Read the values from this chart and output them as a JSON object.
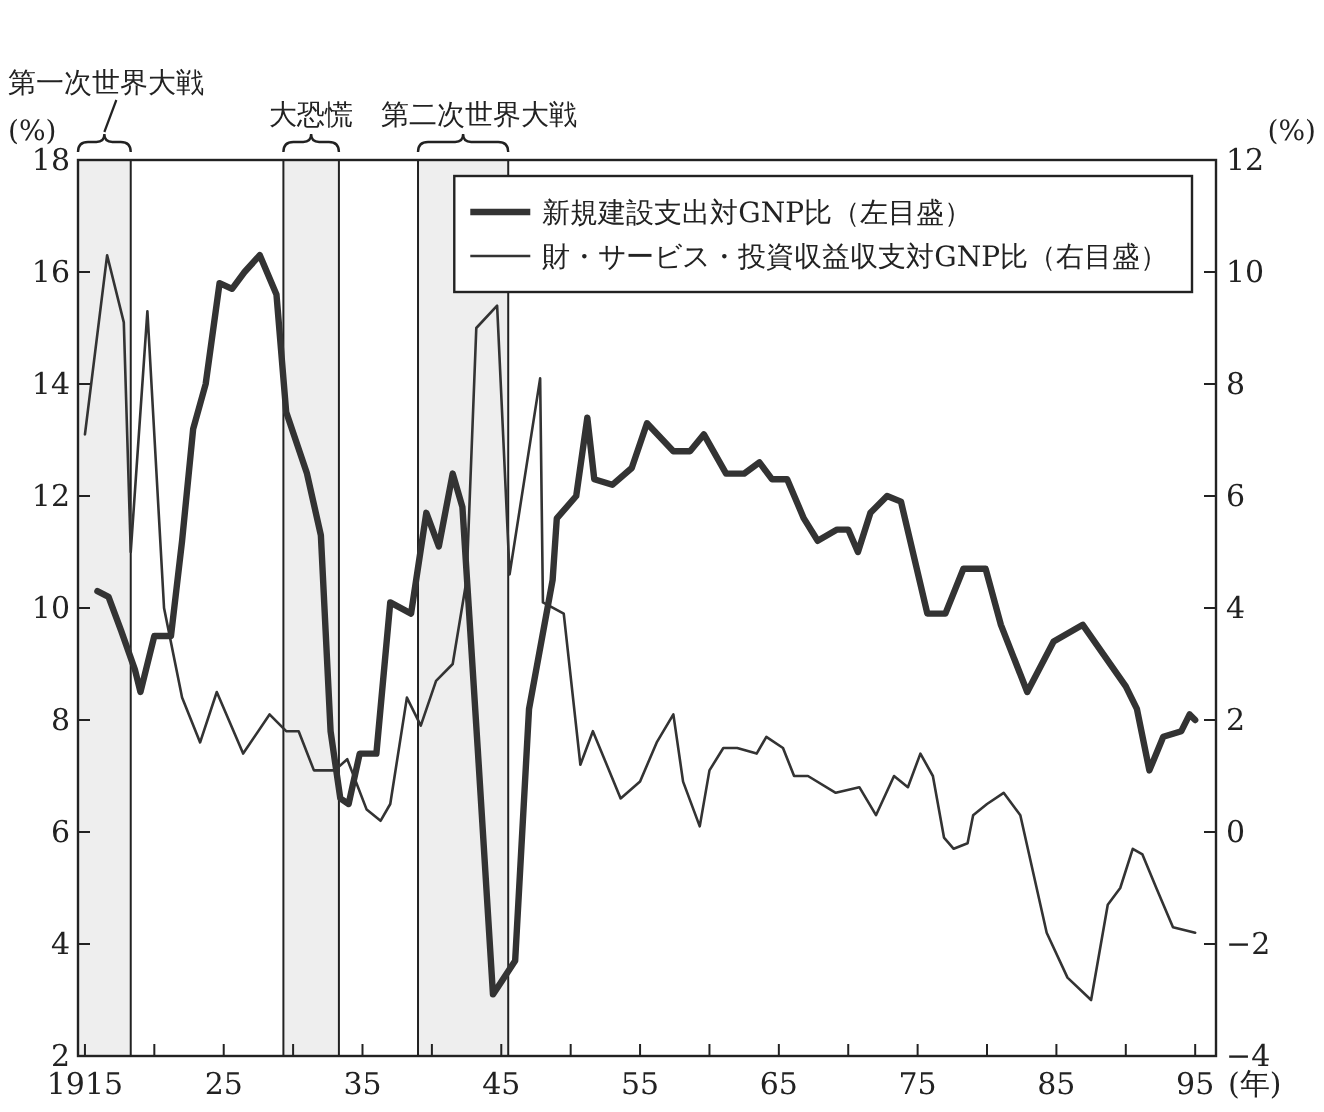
{
  "chart_data": {
    "type": "line",
    "xlabel": "(年)",
    "ylabel": "(%)",
    "y2label": "(%)",
    "xlim": [
      1914.5,
      1996.5
    ],
    "ylim": [
      2,
      18
    ],
    "y2lim": [
      -4,
      12
    ],
    "xticks": [
      {
        "value": 1915,
        "label": "1915"
      },
      {
        "value": 1920,
        "label": null
      },
      {
        "value": 1925,
        "label": "25"
      },
      {
        "value": 1930,
        "label": null
      },
      {
        "value": 1935,
        "label": "35"
      },
      {
        "value": 1940,
        "label": null
      },
      {
        "value": 1945,
        "label": "45"
      },
      {
        "value": 1950,
        "label": null
      },
      {
        "value": 1955,
        "label": "55"
      },
      {
        "value": 1960,
        "label": null
      },
      {
        "value": 1965,
        "label": "65"
      },
      {
        "value": 1970,
        "label": null
      },
      {
        "value": 1975,
        "label": "75"
      },
      {
        "value": 1980,
        "label": null
      },
      {
        "value": 1985,
        "label": "85"
      },
      {
        "value": 1990,
        "label": null
      },
      {
        "value": 1995,
        "label": "95"
      }
    ],
    "yticks": [
      2,
      4,
      6,
      8,
      10,
      12,
      14,
      16,
      18
    ],
    "y2ticks": [
      {
        "value": -4,
        "label": "−4"
      },
      {
        "value": -2,
        "label": "−2"
      },
      0,
      2,
      4,
      6,
      8,
      10,
      12
    ],
    "legend": "top right",
    "grid": false,
    "bands": [
      {
        "axis": "x",
        "from": 1914.5,
        "to": 1918.3,
        "label": "第一次世界大戦",
        "color": "#eeeeee"
      },
      {
        "axis": "x",
        "from": 1929.3,
        "to": 1933.3,
        "label": "大恐慌",
        "color": "#eeeeee"
      },
      {
        "axis": "x",
        "from": 1939,
        "to": 1945.5,
        "label": "第二次世界大戦",
        "color": "#eeeeee"
      }
    ],
    "series": [
      {
        "name": "新規建設支出対GNP比（左目盛）",
        "color": "#333333",
        "line_style": "solid",
        "x": [
          1915.9,
          1916.7,
          1917.6,
          1918.6,
          1919.0,
          1920.0,
          1921.2,
          1922.0,
          1922.8,
          1923.7,
          1924.7,
          1925.6,
          1926.5,
          1927.6,
          1928.8,
          1929.5,
          1931.0,
          1932.0,
          1932.7,
          1933.4,
          1934.0,
          1934.8,
          1936.0,
          1937.0,
          1938.5,
          1939.6,
          1940.5,
          1941.5,
          1942.2,
          1943.3,
          1944.4,
          1946.0,
          1947.0,
          1948.7,
          1949.0,
          1950.4,
          1951.2,
          1951.7,
          1953.0,
          1954.4,
          1955.5,
          1957.4,
          1958.6,
          1959.6,
          1961.2,
          1962.5,
          1963.6,
          1964.5,
          1965.6,
          1966.8,
          1967.8,
          1969.2,
          1970.0,
          1970.7,
          1971.6,
          1972.8,
          1973.8,
          1975.7,
          1977.0,
          1978.3,
          1979.9,
          1981.0,
          1982.9,
          1984.8,
          1986.9,
          1990.0,
          1990.8,
          1991.7,
          1992.7,
          1994.0,
          1994.6,
          1995.0
        ],
        "values": [
          10.3,
          10.2,
          9.6,
          8.9,
          8.5,
          9.5,
          9.5,
          11.2,
          13.2,
          14.0,
          15.8,
          15.7,
          16.0,
          16.3,
          15.6,
          13.5,
          12.4,
          11.3,
          7.8,
          6.6,
          6.5,
          7.4,
          7.4,
          10.1,
          9.9,
          11.7,
          11.1,
          12.4,
          11.8,
          7.5,
          3.1,
          3.7,
          8.2,
          10.5,
          11.6,
          12.0,
          13.4,
          12.3,
          12.2,
          12.5,
          13.3,
          12.8,
          12.8,
          13.1,
          12.4,
          12.4,
          12.6,
          12.3,
          12.3,
          11.6,
          11.2,
          11.4,
          11.4,
          11.0,
          11.7,
          12.0,
          11.9,
          9.9,
          9.9,
          10.7,
          10.7,
          9.7,
          8.5,
          9.4,
          9.7,
          8.6,
          8.2,
          7.1,
          7.7,
          7.8,
          8.1,
          8.0
        ]
      },
      {
        "name": "財・サービス・投資収益収支対GNP比（右目盛）",
        "color": "#333333",
        "line_style": "solid",
        "axis": "y2",
        "x": [
          1915.0,
          1916.6,
          1917.8,
          1918.3,
          1919.5,
          1920.7,
          1922.0,
          1923.3,
          1924.5,
          1926.4,
          1928.3,
          1929.5,
          1930.4,
          1931.5,
          1933.0,
          1933.9,
          1935.3,
          1936.3,
          1937.0,
          1938.2,
          1939.2,
          1940.3,
          1941.5,
          1942.5,
          1943.2,
          1944.7,
          1945.6,
          1947.8,
          1948.0,
          1949.5,
          1950.7,
          1951.6,
          1953.6,
          1955.0,
          1956.2,
          1957.4,
          1958.1,
          1959.3,
          1960.0,
          1961.0,
          1962.0,
          1963.4,
          1964.1,
          1965.3,
          1966.1,
          1967.1,
          1969.1,
          1970.8,
          1972.0,
          1973.3,
          1974.3,
          1975.2,
          1976.1,
          1976.9,
          1977.6,
          1978.6,
          1979.0,
          1980.0,
          1981.2,
          1982.4,
          1984.3,
          1985.8,
          1987.5,
          1988.7,
          1989.6,
          1990.5,
          1991.2,
          1992.2,
          1993.4,
          1995.0
        ],
        "values": [
          7.1,
          10.3,
          9.1,
          5.0,
          9.3,
          4.0,
          2.4,
          1.6,
          2.5,
          1.4,
          2.1,
          1.8,
          1.8,
          1.1,
          1.1,
          1.3,
          0.4,
          0.2,
          0.5,
          2.4,
          1.9,
          2.7,
          3.0,
          4.5,
          9.0,
          9.4,
          4.6,
          8.1,
          4.1,
          3.9,
          1.2,
          1.8,
          0.6,
          0.9,
          1.6,
          2.1,
          0.9,
          0.1,
          1.1,
          1.5,
          1.5,
          1.4,
          1.7,
          1.5,
          1.0,
          1.0,
          0.7,
          0.8,
          0.3,
          1.0,
          0.8,
          1.4,
          1.0,
          -0.1,
          -0.3,
          -0.2,
          0.3,
          0.5,
          0.7,
          0.3,
          -1.8,
          -2.6,
          -3.0,
          -1.3,
          -1.0,
          -0.3,
          -0.4,
          -1.0,
          -1.7,
          -1.8
        ]
      }
    ]
  }
}
